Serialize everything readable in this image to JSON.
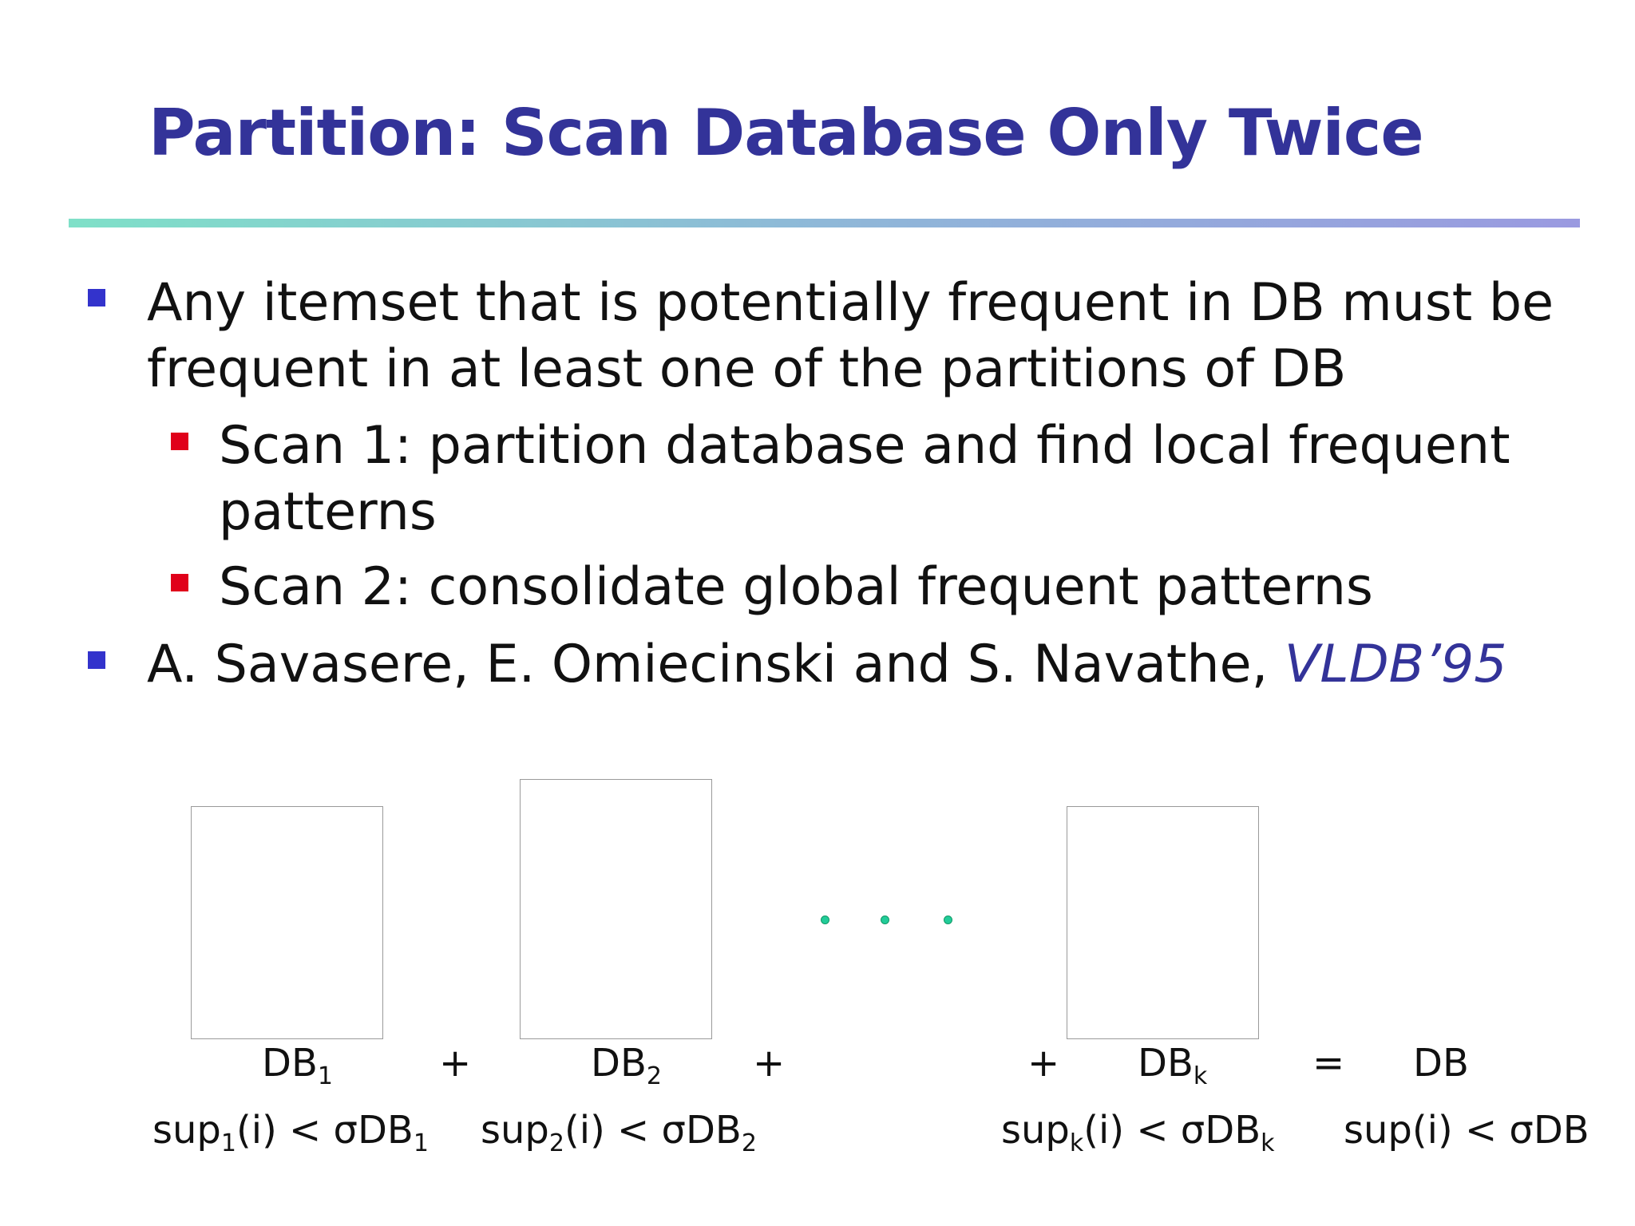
{
  "slide": {
    "title": "Partition: Scan Database Only Twice",
    "bullets": [
      {
        "line1": "Any itemset that is potentially frequent in DB must be",
        "line2": "frequent in at least one of the partitions of DB"
      },
      {
        "line1": "Scan 1: partition database and find local frequent",
        "line2": "patterns"
      },
      {
        "line1": "Scan 2: consolidate global frequent patterns"
      },
      {
        "text": "A. Savasere, E. Omiecinski and S. Navathe, ",
        "venue": "VLDB’95"
      }
    ]
  },
  "diagram": {
    "partitions": [
      {
        "name": "DB",
        "sub": "1",
        "sup_prefix": "sup",
        "sup_sub": "1",
        "sup_mid": "(i) < σDB",
        "sup_sub2": "1"
      },
      {
        "name": "DB",
        "sub": "2",
        "sup_prefix": "sup",
        "sup_sub": "2",
        "sup_mid": "(i) < σDB",
        "sup_sub2": "2"
      },
      {
        "name": "DB",
        "sub": "k",
        "sup_prefix": "sup",
        "sup_sub": "k",
        "sup_mid": "(i) < σDB",
        "sup_sub2": "k"
      }
    ],
    "operators": {
      "plus": "+",
      "equals": "="
    },
    "total": {
      "name": "DB",
      "sup": "sup(i) < σDB"
    }
  },
  "colors": {
    "title": "#333399",
    "bullet_l1": "#3333cc",
    "bullet_l2": "#e0001a",
    "dots": "#22cc99"
  }
}
